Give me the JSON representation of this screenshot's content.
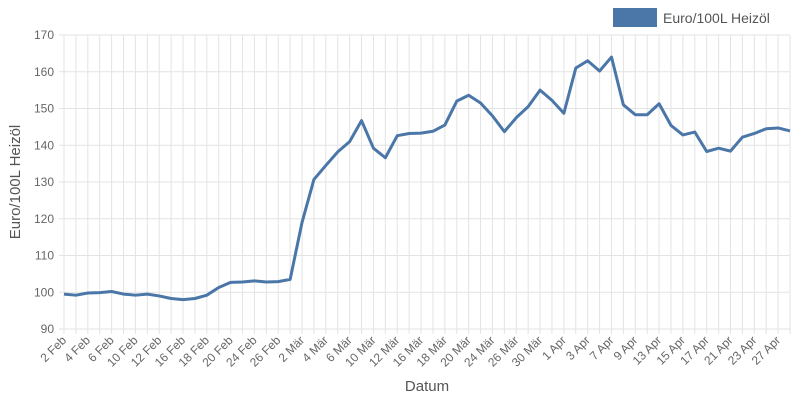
{
  "chart_data": {
    "type": "line",
    "x_label": "Datum",
    "y_label": "Euro/100L Heizöl",
    "categories": [
      "2 Feb",
      null,
      "4 Feb",
      null,
      "6 Feb",
      null,
      "10 Feb",
      null,
      "12 Feb",
      null,
      "16 Feb",
      null,
      "18 Feb",
      null,
      "20 Feb",
      null,
      "24 Feb",
      null,
      "26 Feb",
      null,
      "2 Mär",
      null,
      "4 Mär",
      null,
      "6 Mär",
      null,
      "10 Mär",
      null,
      "12 Mär",
      null,
      "16 Mär",
      null,
      "18 Mär",
      null,
      "20 Mär",
      null,
      "24 Mär",
      null,
      "26 Mär",
      null,
      "30 Mär",
      null,
      "1 Apr",
      null,
      "3 Apr",
      null,
      "7 Apr",
      null,
      "9 Apr",
      null,
      "13 Apr",
      null,
      "15 Apr",
      null,
      "17 Apr",
      null,
      "21 Apr",
      null,
      "23 Apr",
      null,
      "27 Apr",
      null
    ],
    "series": [
      {
        "name": "Euro/100L Heizöl",
        "color": "#4a76a8",
        "values": [
          99.5,
          99.2,
          99.8,
          99.9,
          100.2,
          99.5,
          99.2,
          99.5,
          99.0,
          98.3,
          98.0,
          98.3,
          99.2,
          101.3,
          102.7,
          102.8,
          103.1,
          102.8,
          102.9,
          103.5,
          119,
          130.7,
          134.5,
          138.2,
          141,
          146.7,
          139.2,
          136.6,
          142.6,
          143.2,
          143.3,
          143.8,
          145.5,
          152,
          153.6,
          151.5,
          148,
          143.7,
          147.5,
          150.5,
          155,
          152.2,
          148.7,
          161,
          163,
          160.2,
          164,
          151,
          148.3,
          148.3,
          151.3,
          145.4,
          142.8,
          143.6,
          138.3,
          139.2,
          138.4,
          142.2,
          143.2,
          144.5,
          144.7,
          143.9
        ]
      }
    ],
    "ylim": [
      90,
      170
    ],
    "yticks": [
      90,
      100,
      110,
      120,
      130,
      140,
      150,
      160,
      170
    ],
    "grid": true,
    "legend": "top-right"
  }
}
